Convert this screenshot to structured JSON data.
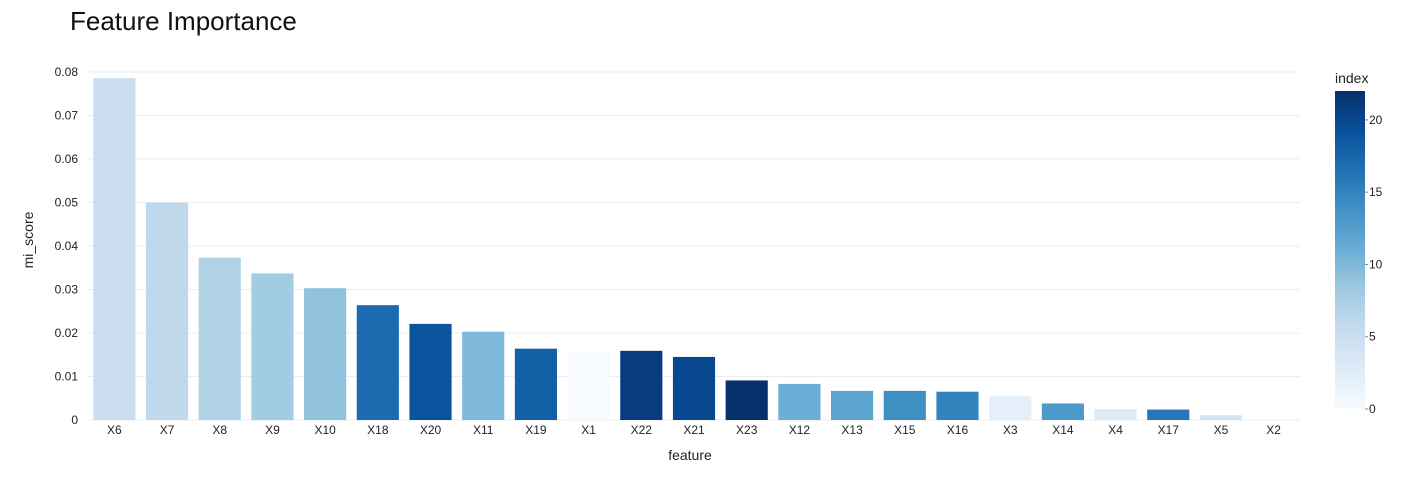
{
  "chart_data": {
    "type": "bar",
    "title": "Feature Importance",
    "xlabel": "feature",
    "ylabel": "mi_score",
    "ylim": [
      0,
      0.08
    ],
    "y_ticks": [
      "0",
      "0.01",
      "0.02",
      "0.03",
      "0.04",
      "0.05",
      "0.06",
      "0.07",
      "0.08"
    ],
    "grid": true,
    "categories": [
      "X6",
      "X7",
      "X8",
      "X9",
      "X10",
      "X18",
      "X20",
      "X11",
      "X19",
      "X1",
      "X22",
      "X21",
      "X23",
      "X12",
      "X13",
      "X15",
      "X16",
      "X3",
      "X14",
      "X4",
      "X17",
      "X5",
      "X2"
    ],
    "values": [
      0.0786,
      0.05,
      0.0373,
      0.0337,
      0.0303,
      0.0264,
      0.0221,
      0.0203,
      0.0164,
      0.0158,
      0.0159,
      0.0145,
      0.0091,
      0.0083,
      0.0067,
      0.0067,
      0.0065,
      0.0055,
      0.0038,
      0.0025,
      0.0024,
      0.0011,
      0.0002
    ],
    "color_values": [
      5,
      6,
      7,
      8,
      9,
      17,
      19,
      10,
      18,
      0,
      21,
      20,
      22,
      11,
      12,
      14,
      15,
      2,
      13,
      3,
      16,
      4,
      1
    ],
    "colorbar": {
      "title": "index",
      "range": [
        0,
        22
      ],
      "ticks": [
        "0",
        "5",
        "10",
        "15",
        "20"
      ],
      "colorscale": [
        "#f7fbff",
        "#deebf7",
        "#c6dbef",
        "#9ecae1",
        "#6baed6",
        "#4292c6",
        "#2171b5",
        "#08519c",
        "#08306b"
      ]
    }
  }
}
